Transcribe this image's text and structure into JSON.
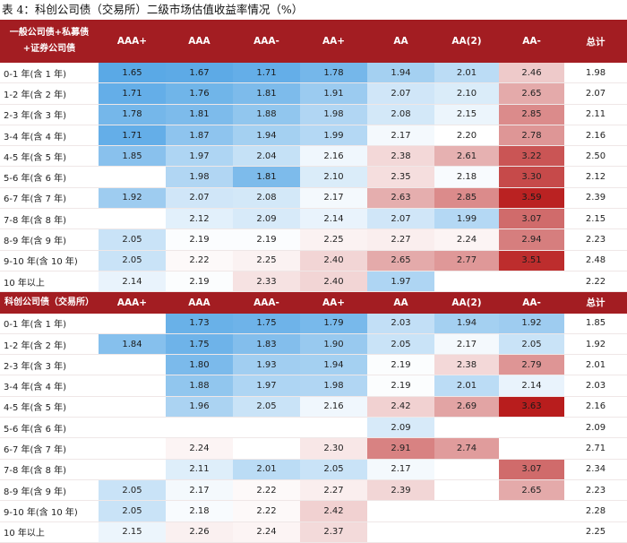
{
  "caption": "表 4：科创公司债（交易所）二级市场估值收益率情况（%）",
  "columns": [
    "AAA+",
    "AAA",
    "AAA-",
    "AA+",
    "AA",
    "AA(2)",
    "AA-",
    "总计"
  ],
  "colors": {
    "header_bg": "#a31d22",
    "low_blue": "#5aa9e6",
    "mid_white": "#ffffff",
    "high_red": "#b81d1d"
  },
  "sections": [
    {
      "title": "一般公司债+私募债+证券公司债",
      "rows": [
        {
          "label": "0-1 年(含 1 年)",
          "values": [
            1.65,
            1.67,
            1.71,
            1.78,
            1.94,
            2.01,
            2.46
          ],
          "total": "1.98"
        },
        {
          "label": "1-2 年(含 2 年)",
          "values": [
            1.71,
            1.76,
            1.81,
            1.91,
            2.07,
            2.1,
            2.65
          ],
          "total": "2.07"
        },
        {
          "label": "2-3 年(含 3 年)",
          "values": [
            1.78,
            1.81,
            1.88,
            1.98,
            2.08,
            2.15,
            2.85
          ],
          "total": "2.11"
        },
        {
          "label": "3-4 年(含 4 年)",
          "values": [
            1.71,
            1.87,
            1.94,
            1.99,
            2.17,
            2.2,
            2.78
          ],
          "total": "2.16"
        },
        {
          "label": "4-5 年(含 5 年)",
          "values": [
            1.85,
            1.97,
            2.04,
            2.16,
            2.38,
            2.61,
            3.22
          ],
          "total": "2.50"
        },
        {
          "label": "5-6 年(含 6 年)",
          "values": [
            null,
            1.98,
            1.81,
            2.1,
            2.35,
            2.18,
            3.3
          ],
          "total": "2.12"
        },
        {
          "label": "6-7 年(含 7 年)",
          "values": [
            1.92,
            2.07,
            2.08,
            2.17,
            2.63,
            2.85,
            3.59
          ],
          "total": "2.39"
        },
        {
          "label": "7-8 年(含 8 年)",
          "values": [
            null,
            2.12,
            2.09,
            2.14,
            2.07,
            1.99,
            3.07
          ],
          "total": "2.15"
        },
        {
          "label": "8-9 年(含 9 年)",
          "values": [
            2.05,
            2.19,
            2.19,
            2.25,
            2.27,
            2.24,
            2.94
          ],
          "total": "2.23"
        },
        {
          "label": "9-10 年(含 10 年)",
          "values": [
            2.05,
            2.22,
            2.25,
            2.4,
            2.65,
            2.77,
            3.51
          ],
          "total": "2.48"
        },
        {
          "label": "10 年以上",
          "values": [
            2.14,
            2.19,
            2.33,
            2.4,
            1.97,
            null,
            null
          ],
          "total": "2.22"
        }
      ]
    },
    {
      "title": "科创公司债（交易所）",
      "rows": [
        {
          "label": "0-1 年(含 1 年)",
          "values": [
            null,
            1.73,
            1.75,
            1.79,
            2.03,
            1.94,
            1.92
          ],
          "total": "1.85"
        },
        {
          "label": "1-2 年(含 2 年)",
          "values": [
            1.84,
            1.75,
            1.83,
            1.9,
            2.05,
            2.17,
            2.05
          ],
          "total": "1.92"
        },
        {
          "label": "2-3 年(含 3 年)",
          "values": [
            null,
            1.8,
            1.93,
            1.94,
            2.19,
            2.38,
            2.79
          ],
          "total": "2.01"
        },
        {
          "label": "3-4 年(含 4 年)",
          "values": [
            null,
            1.88,
            1.97,
            1.98,
            2.19,
            2.01,
            2.14
          ],
          "total": "2.03"
        },
        {
          "label": "4-5 年(含 5 年)",
          "values": [
            null,
            1.96,
            2.05,
            2.16,
            2.42,
            2.69,
            3.63
          ],
          "total": "2.16"
        },
        {
          "label": "5-6 年(含 6 年)",
          "values": [
            null,
            null,
            null,
            null,
            2.09,
            null,
            null
          ],
          "total": "2.09"
        },
        {
          "label": "6-7 年(含 7 年)",
          "values": [
            null,
            2.24,
            null,
            2.3,
            2.91,
            2.74,
            null
          ],
          "total": "2.71"
        },
        {
          "label": "7-8 年(含 8 年)",
          "values": [
            null,
            2.11,
            2.01,
            2.05,
            2.17,
            null,
            3.07
          ],
          "total": "2.34"
        },
        {
          "label": "8-9 年(含 9 年)",
          "values": [
            2.05,
            2.17,
            2.22,
            2.27,
            2.39,
            null,
            2.65
          ],
          "total": "2.23"
        },
        {
          "label": "9-10 年(含 10 年)",
          "values": [
            2.05,
            2.18,
            2.22,
            2.42,
            null,
            null,
            null
          ],
          "total": "2.28"
        },
        {
          "label": "10 年以上",
          "values": [
            2.15,
            2.26,
            2.24,
            2.37,
            null,
            null,
            null
          ],
          "total": "2.25"
        }
      ]
    }
  ]
}
